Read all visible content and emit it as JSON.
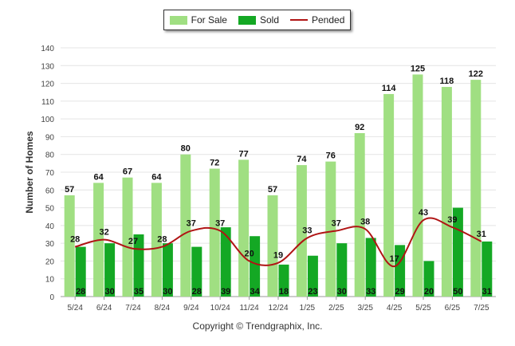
{
  "legend": {
    "for_sale": "For Sale",
    "sold": "Sold",
    "pended": "Pended"
  },
  "copyright": "Copyright © Trendgraphix, Inc.",
  "chart_data": {
    "type": "bar",
    "categories": [
      "5/24",
      "6/24",
      "7/24",
      "8/24",
      "9/24",
      "10/24",
      "11/24",
      "12/24",
      "1/25",
      "2/25",
      "3/25",
      "4/25",
      "5/25",
      "6/25",
      "7/25"
    ],
    "series": [
      {
        "name": "For Sale",
        "type": "bar",
        "color": "#a0df82",
        "values": [
          57,
          64,
          67,
          64,
          80,
          72,
          77,
          57,
          74,
          76,
          92,
          114,
          125,
          118,
          122
        ]
      },
      {
        "name": "Sold",
        "type": "bar",
        "color": "#14a824",
        "values": [
          28,
          30,
          35,
          30,
          28,
          39,
          34,
          18,
          23,
          30,
          33,
          29,
          20,
          50,
          31
        ]
      },
      {
        "name": "Pended",
        "type": "line",
        "color": "#b01414",
        "values": [
          28,
          32,
          27,
          28,
          37,
          37,
          20,
          19,
          33,
          37,
          38,
          17,
          43,
          39,
          31
        ]
      }
    ],
    "ylabel": "Number of Homes",
    "xlabel": "",
    "ylim": [
      0,
      140
    ],
    "yticks": [
      0,
      10,
      20,
      30,
      40,
      50,
      60,
      70,
      80,
      90,
      100,
      110,
      120,
      130,
      140
    ],
    "grid": true,
    "legend_position": "top-center"
  }
}
